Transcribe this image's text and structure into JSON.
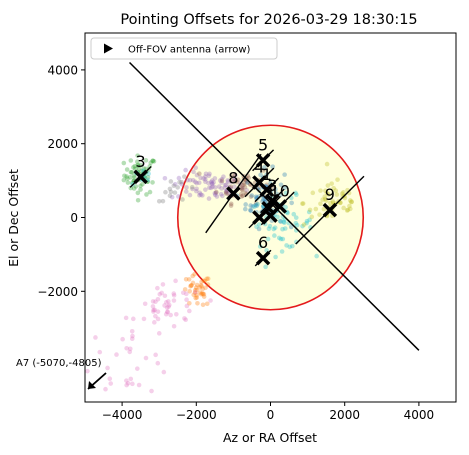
{
  "chart_data": {
    "type": "scatter",
    "title": "Pointing Offsets for 2026-03-29 18:30:15",
    "xlabel": "Az or RA Offset",
    "ylabel": "El or Dec Offset",
    "xlim": [
      -5000,
      5000
    ],
    "ylim": [
      -5000,
      5000
    ],
    "xticks": [
      -4000,
      -2000,
      0,
      2000,
      4000
    ],
    "yticks": [
      -2000,
      0,
      2000,
      4000
    ],
    "xtick_labels": [
      "−4000",
      "−2000",
      "0",
      "2000",
      "4000"
    ],
    "ytick_labels": [
      "−2000",
      "0",
      "2000",
      "4000"
    ],
    "grid": false,
    "legend": {
      "position": "top-left",
      "entries": [
        "Off-FOV antenna (arrow)"
      ]
    },
    "fov_circle": {
      "center": [
        0,
        0
      ],
      "radius": 2500,
      "edge_color": "#e41a1c",
      "fill_color": "#ffffdd"
    },
    "trajectory_line": {
      "x": [
        -3800,
        4000
      ],
      "y": [
        4200,
        -3600
      ]
    },
    "antennas": [
      {
        "label": "3",
        "x": -3500,
        "y": 1100,
        "line_angle_deg": 45,
        "line_length": 800
      },
      {
        "label": "5",
        "x": -200,
        "y": 1550,
        "line_angle_deg": 45,
        "line_length": 800
      },
      {
        "label": "4",
        "x": -300,
        "y": 950,
        "line_angle_deg": 45,
        "line_length": 1100
      },
      {
        "label": "8",
        "x": -1000,
        "y": 650,
        "line_angle_deg": 55,
        "line_length": 2600
      },
      {
        "label": "1",
        "x": -100,
        "y": 750,
        "line_angle_deg": 45,
        "line_length": 900
      },
      {
        "label": "3",
        "x": 50,
        "y": 450,
        "line_angle_deg": 45,
        "line_length": 900
      },
      {
        "label": "2",
        "x": -50,
        "y": 250,
        "line_angle_deg": 45,
        "line_length": 900
      },
      {
        "label": "10",
        "x": 250,
        "y": 300,
        "line_angle_deg": 45,
        "line_length": 1100
      },
      {
        "label": "9",
        "x": 1600,
        "y": 200,
        "line_angle_deg": 45,
        "line_length": 2600
      },
      {
        "label": "",
        "x": -300,
        "y": 0,
        "line_angle_deg": 45,
        "line_length": 800
      },
      {
        "label": "",
        "x": 0,
        "y": 50,
        "line_angle_deg": 45,
        "line_length": 700
      },
      {
        "label": "6",
        "x": -200,
        "y": -1100,
        "line_angle_deg": 45,
        "line_length": 600
      }
    ],
    "off_fov_arrows": [
      {
        "label": "A7 (-5070,-4805)",
        "x": -5070,
        "y": -4805
      }
    ],
    "scatter_clouds": [
      {
        "color": "#2ca02c",
        "cx": -3500,
        "cy": 1150,
        "sx": 220,
        "sy": 260,
        "n": 60
      },
      {
        "color": "#9467bd",
        "cx": -1700,
        "cy": 850,
        "sx": 500,
        "sy": 200,
        "n": 80
      },
      {
        "color": "#8c564b",
        "cx": -700,
        "cy": 900,
        "sx": 350,
        "sy": 250,
        "n": 50
      },
      {
        "color": "#1f77b4",
        "cx": -150,
        "cy": 500,
        "sx": 260,
        "sy": 380,
        "n": 70
      },
      {
        "color": "#17becf",
        "cx": 300,
        "cy": -150,
        "sx": 420,
        "sy": 350,
        "n": 60
      },
      {
        "color": "#bcbd22",
        "cx": 1700,
        "cy": 400,
        "sx": 400,
        "sy": 320,
        "n": 55
      },
      {
        "color": "#ff7f0e",
        "cx": -2000,
        "cy": -2000,
        "sx": 200,
        "sy": 220,
        "n": 40
      },
      {
        "color": "#e377c2",
        "cx": -2700,
        "cy": -2450,
        "sx": 450,
        "sy": 300,
        "n": 45
      },
      {
        "color": "#e377c2",
        "cx": -3800,
        "cy": -3800,
        "sx": 600,
        "sy": 500,
        "n": 30
      },
      {
        "color": "#7f7f7f",
        "cx": -2500,
        "cy": 750,
        "sx": 300,
        "sy": 150,
        "n": 15
      },
      {
        "color": "#17becf",
        "cx": -3500,
        "cy": 1100,
        "sx": 150,
        "sy": 150,
        "n": 10
      }
    ]
  }
}
